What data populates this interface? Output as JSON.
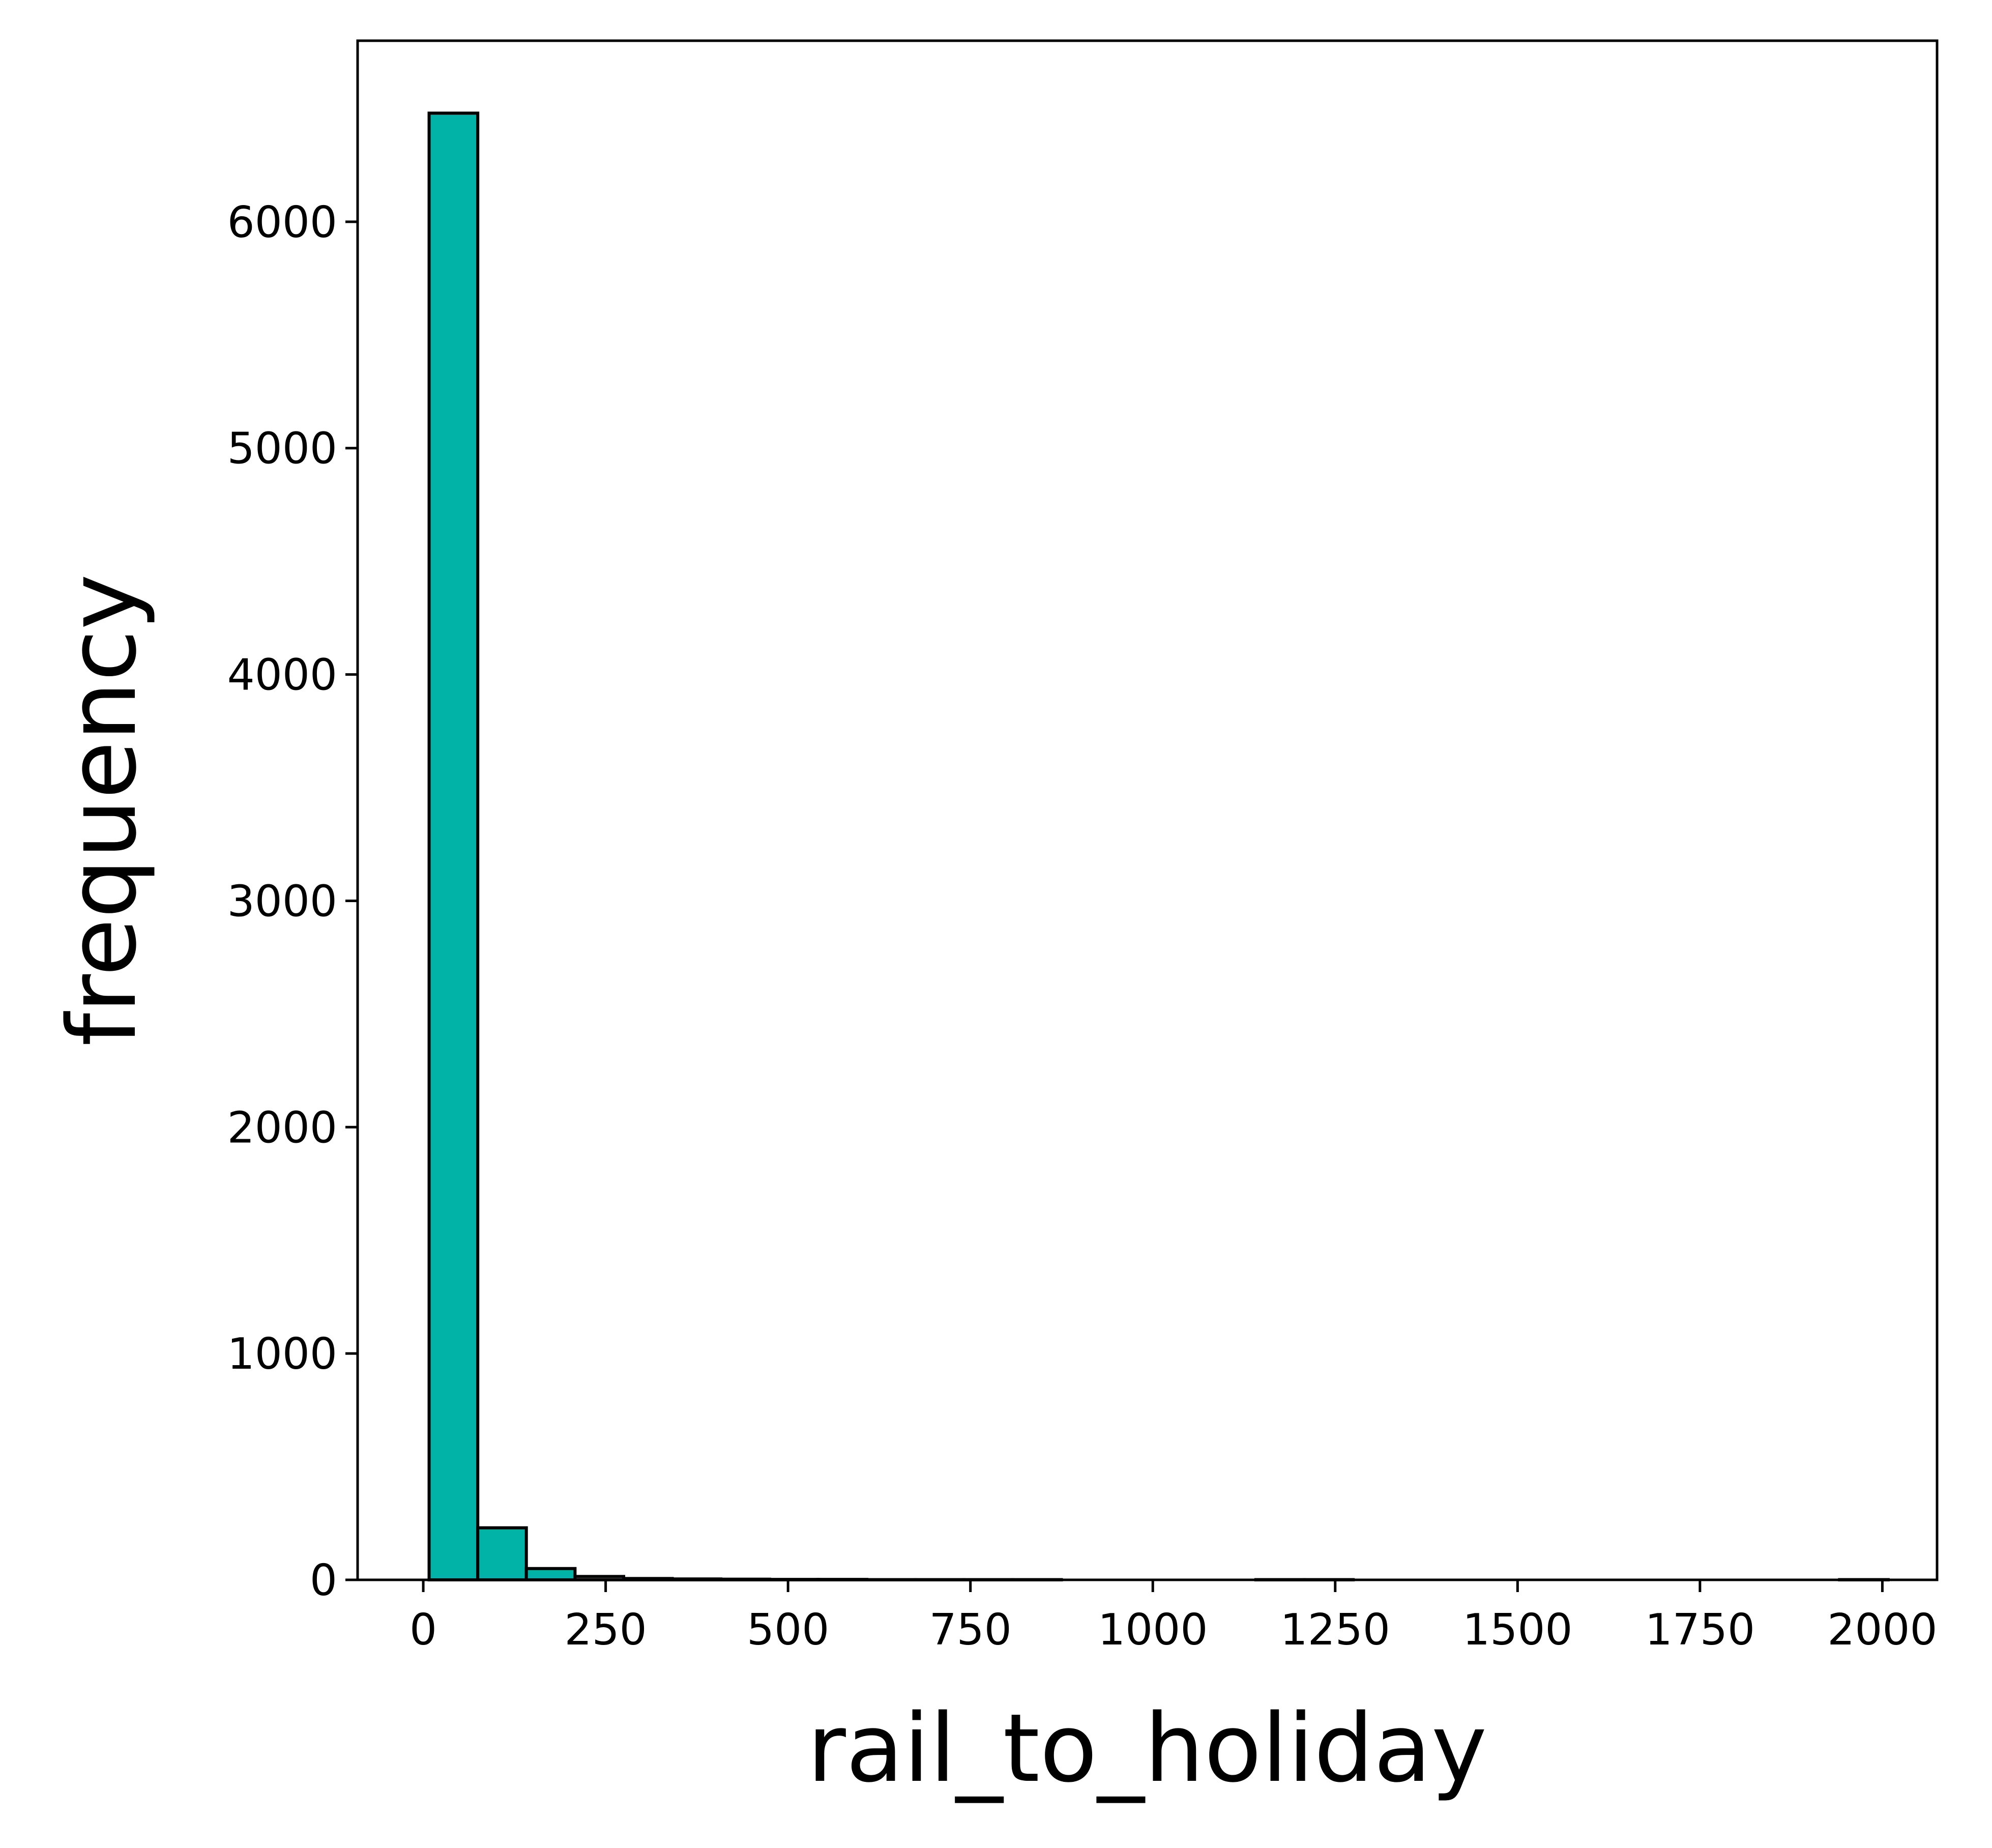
{
  "chart_data": {
    "type": "bar",
    "subtype": "histogram",
    "title": "",
    "xlabel": "rail_to_holiday",
    "ylabel": "frequency",
    "xlim": [
      -90,
      2075
    ],
    "ylim": [
      0,
      6800
    ],
    "xticks": [
      0,
      250,
      500,
      750,
      1000,
      1250,
      1500,
      1750,
      2000
    ],
    "yticks": [
      0,
      1000,
      2000,
      3000,
      4000,
      5000,
      6000
    ],
    "bin_edges": [
      8,
      74.7,
      141.3,
      208,
      274.7,
      341.3,
      408,
      474.7,
      541.3,
      608,
      674.7,
      741.3,
      808,
      874.7,
      941.3,
      1008,
      1074.7,
      1141.3,
      1208,
      1274.7,
      1341.3,
      1408,
      1474.7,
      1541.3,
      1608,
      1674.7,
      1741.3,
      1808,
      1874.7,
      1941.3,
      2008
    ],
    "values": [
      6480,
      230,
      50,
      15,
      6,
      4,
      3,
      2,
      2,
      1,
      1,
      1,
      1,
      0,
      0,
      0,
      0,
      1,
      1,
      0,
      0,
      0,
      0,
      0,
      0,
      0,
      0,
      0,
      0,
      1
    ],
    "bar_color": "#00b3a6",
    "edge_color": "#000000",
    "grid": false,
    "legend": "none"
  }
}
